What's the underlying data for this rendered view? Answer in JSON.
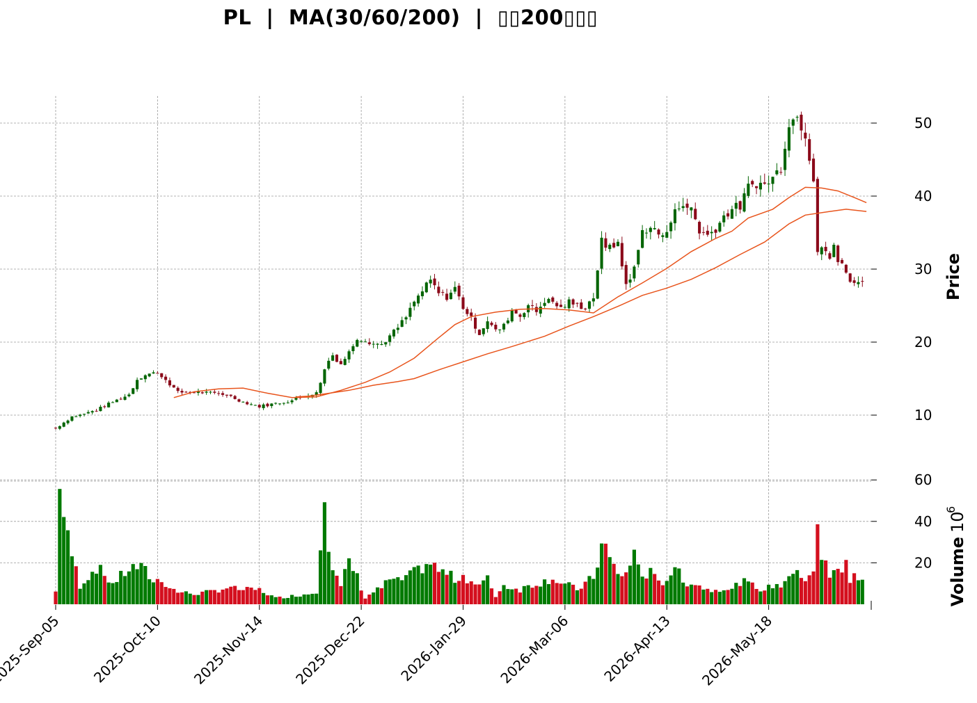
{
  "chart_data": {
    "type": "candlestick",
    "title": "PL  |  MA(30/60/200)  |  ▯▯200▯▯▯",
    "price_panel": {
      "ylabel": "Price",
      "ylim": [
        6,
        54
      ],
      "yticks": [
        10,
        20,
        30,
        40,
        50
      ],
      "grid": true
    },
    "volume_panel": {
      "ylabel": "Volume",
      "unit_exponent": "6",
      "ylim": [
        0,
        64
      ],
      "yticks": [
        20,
        40,
        60
      ],
      "grid": true
    },
    "x_ticks": [
      {
        "index": 0,
        "label": "2025-Sep-05"
      },
      {
        "index": 25,
        "label": "2025-Oct-10"
      },
      {
        "index": 50,
        "label": "2025-Nov-14"
      },
      {
        "index": 75,
        "label": "2025-Dec-22"
      },
      {
        "index": 100,
        "label": "2026-Jan-29"
      },
      {
        "index": 125,
        "label": "2026-Mar-06"
      },
      {
        "index": 150,
        "label": "2026-Apr-13"
      },
      {
        "index": 175,
        "label": "2026-May-18"
      }
    ],
    "colors": {
      "up": "#006400",
      "down": "#8b0a1a",
      "vol_up": "#007a00",
      "vol_down": "#d40f1e",
      "ma": "#e8541c",
      "grid": "#9a9a9a"
    },
    "anchors": [
      [
        0,
        8.2,
        6
      ],
      [
        1,
        8.6,
        62
      ],
      [
        2,
        9.0,
        42
      ],
      [
        3,
        9.4,
        31
      ],
      [
        4,
        9.8,
        24
      ],
      [
        6,
        10.0,
        9
      ],
      [
        10,
        10.7,
        18
      ],
      [
        14,
        11.8,
        10
      ],
      [
        18,
        12.8,
        17
      ],
      [
        20,
        14.9,
        18
      ],
      [
        22,
        15.6,
        16
      ],
      [
        24,
        15.8,
        11
      ],
      [
        26,
        15.4,
        12
      ],
      [
        28,
        14.3,
        8
      ],
      [
        30,
        13.1,
        6
      ],
      [
        34,
        13.2,
        5
      ],
      [
        38,
        13.0,
        6
      ],
      [
        42,
        12.8,
        8
      ],
      [
        46,
        11.8,
        7
      ],
      [
        50,
        11.2,
        7
      ],
      [
        54,
        11.6,
        3
      ],
      [
        58,
        12.0,
        4
      ],
      [
        62,
        12.8,
        5
      ],
      [
        64,
        13.0,
        6
      ],
      [
        66,
        16.2,
        59
      ],
      [
        67,
        17.5,
        30
      ],
      [
        68,
        18.2,
        17
      ],
      [
        70,
        17.0,
        8
      ],
      [
        72,
        18.6,
        21
      ],
      [
        74,
        20.6,
        13
      ],
      [
        76,
        20.3,
        3
      ],
      [
        78,
        19.8,
        6
      ],
      [
        80,
        19.7,
        8
      ],
      [
        82,
        20.8,
        12
      ],
      [
        84,
        22.0,
        11
      ],
      [
        86,
        23.4,
        13
      ],
      [
        88,
        25.5,
        15
      ],
      [
        90,
        27.0,
        18
      ],
      [
        92,
        28.4,
        20
      ],
      [
        94,
        26.7,
        16
      ],
      [
        96,
        26.2,
        15
      ],
      [
        98,
        27.4,
        12
      ],
      [
        100,
        24.8,
        14
      ],
      [
        102,
        23.2,
        11
      ],
      [
        104,
        21.2,
        9
      ],
      [
        106,
        23.0,
        12
      ],
      [
        108,
        21.5,
        4
      ],
      [
        110,
        22.2,
        9
      ],
      [
        112,
        24.4,
        8
      ],
      [
        114,
        23.6,
        7
      ],
      [
        116,
        25.1,
        9
      ],
      [
        118,
        24.2,
        10
      ],
      [
        120,
        25.7,
        11
      ],
      [
        122,
        25.5,
        13
      ],
      [
        124,
        24.6,
        10
      ],
      [
        126,
        25.5,
        9
      ],
      [
        128,
        25.0,
        7
      ],
      [
        130,
        24.8,
        10
      ],
      [
        132,
        26.2,
        13
      ],
      [
        134,
        33.8,
        28
      ],
      [
        135,
        32.6,
        27
      ],
      [
        136,
        33.6,
        22
      ],
      [
        138,
        33.2,
        14
      ],
      [
        140,
        27.9,
        15
      ],
      [
        142,
        30.0,
        24
      ],
      [
        144,
        35.2,
        14
      ],
      [
        146,
        35.8,
        15
      ],
      [
        148,
        34.8,
        10
      ],
      [
        150,
        34.6,
        12
      ],
      [
        152,
        38.8,
        19
      ],
      [
        154,
        38.2,
        10
      ],
      [
        156,
        38.5,
        11
      ],
      [
        158,
        35.2,
        9
      ],
      [
        160,
        34.6,
        7
      ],
      [
        162,
        35.6,
        7
      ],
      [
        164,
        37.2,
        8
      ],
      [
        166,
        38.3,
        7
      ],
      [
        168,
        38.6,
        11
      ],
      [
        170,
        41.2,
        10
      ],
      [
        172,
        41.8,
        8
      ],
      [
        174,
        41.5,
        7
      ],
      [
        176,
        42.5,
        9
      ],
      [
        178,
        44.0,
        9
      ],
      [
        180,
        50.2,
        15
      ],
      [
        182,
        50.8,
        14
      ],
      [
        184,
        48.6,
        13
      ],
      [
        185,
        45.4,
        15
      ],
      [
        186,
        42.6,
        17
      ],
      [
        187,
        32.8,
        40
      ],
      [
        188,
        33.2,
        19
      ],
      [
        189,
        32.5,
        21
      ],
      [
        190,
        31.0,
        12
      ],
      [
        191,
        33.5,
        15
      ],
      [
        192,
        31.0,
        19
      ],
      [
        193,
        30.5,
        17
      ],
      [
        194,
        29.4,
        22
      ],
      [
        195,
        28.3,
        9
      ],
      [
        196,
        28.5,
        15
      ],
      [
        197,
        28.3,
        13
      ],
      [
        198,
        28.0,
        11
      ]
    ],
    "ma_series": [
      {
        "period": 30,
        "points": [
          [
            29,
            12.4
          ],
          [
            34,
            13.2
          ],
          [
            40,
            13.6
          ],
          [
            46,
            13.7
          ],
          [
            52,
            13.0
          ],
          [
            58,
            12.4
          ],
          [
            64,
            12.5
          ],
          [
            70,
            13.4
          ],
          [
            76,
            14.5
          ],
          [
            82,
            15.9
          ],
          [
            88,
            17.8
          ],
          [
            94,
            20.6
          ],
          [
            98,
            22.4
          ],
          [
            102,
            23.5
          ],
          [
            108,
            24.1
          ],
          [
            114,
            24.5
          ],
          [
            120,
            24.6
          ],
          [
            126,
            24.4
          ],
          [
            132,
            24.0
          ],
          [
            138,
            26.2
          ],
          [
            144,
            28.1
          ],
          [
            150,
            30.1
          ],
          [
            156,
            32.4
          ],
          [
            162,
            34.2
          ],
          [
            166,
            35.2
          ],
          [
            170,
            37.0
          ],
          [
            176,
            38.2
          ],
          [
            180,
            39.8
          ],
          [
            184,
            41.2
          ],
          [
            188,
            41.1
          ],
          [
            192,
            40.7
          ],
          [
            196,
            39.8
          ],
          [
            199,
            39.1
          ]
        ]
      },
      {
        "period": 60,
        "points": [
          [
            59,
            12.5
          ],
          [
            62,
            12.6
          ],
          [
            66,
            12.9
          ],
          [
            72,
            13.4
          ],
          [
            78,
            14.1
          ],
          [
            84,
            14.6
          ],
          [
            88,
            15.0
          ],
          [
            94,
            16.2
          ],
          [
            100,
            17.3
          ],
          [
            106,
            18.4
          ],
          [
            112,
            19.4
          ],
          [
            120,
            20.8
          ],
          [
            126,
            22.2
          ],
          [
            132,
            23.5
          ],
          [
            138,
            24.9
          ],
          [
            144,
            26.4
          ],
          [
            150,
            27.4
          ],
          [
            156,
            28.6
          ],
          [
            162,
            30.2
          ],
          [
            168,
            32.0
          ],
          [
            174,
            33.7
          ],
          [
            180,
            36.2
          ],
          [
            184,
            37.4
          ],
          [
            190,
            37.9
          ],
          [
            194,
            38.2
          ],
          [
            199,
            37.9
          ]
        ]
      }
    ]
  }
}
